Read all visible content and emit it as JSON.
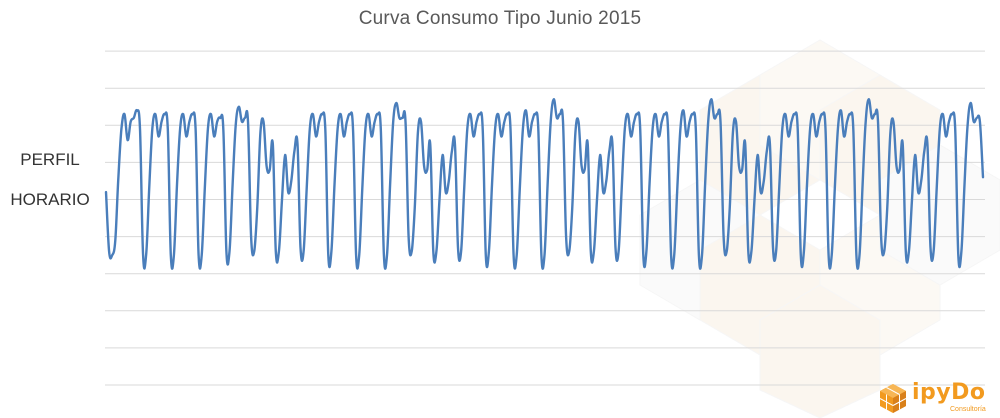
{
  "chart_data": {
    "type": "line",
    "title": "Curva Consumo Tipo Junio 2015",
    "ylabel_lines": [
      "PERFIL",
      "HORARIO"
    ],
    "xlabel": "",
    "grid": true,
    "legend": "none",
    "series_color": "#4a7ebb",
    "series": [
      {
        "values": [
          2.2,
          0.6,
          0.5,
          0.9,
          2.6,
          3.9,
          4.3,
          3.6,
          4.1,
          4.2,
          4.4,
          3.9,
          0.5,
          0.5,
          2.3,
          3.9,
          4.3,
          3.7,
          4.1,
          4.3,
          3.9,
          0.5,
          0.5,
          2.4,
          3.9,
          4.3,
          3.7,
          4.1,
          4.3,
          3.9,
          0.5,
          0.5,
          2.3,
          3.9,
          4.3,
          3.7,
          4.1,
          4.2,
          3.9,
          0.6,
          0.6,
          2.4,
          4.0,
          4.5,
          4.1,
          4.2,
          4.1,
          1.0,
          0.6,
          1.8,
          3.8,
          4.1,
          2.9,
          2.8,
          3.5,
          0.6,
          0.6,
          2.0,
          3.2,
          2.2,
          2.5,
          3.3,
          3.5,
          0.7,
          0.6,
          2.3,
          3.9,
          4.3,
          3.7,
          4.1,
          4.3,
          3.9,
          0.5,
          0.6,
          2.4,
          3.9,
          4.3,
          3.7,
          4.1,
          4.3,
          3.9,
          0.5,
          0.5,
          2.3,
          3.9,
          4.3,
          3.7,
          4.1,
          4.3,
          3.9,
          0.5,
          0.5,
          2.4,
          4.1,
          4.6,
          4.2,
          4.2,
          4.1,
          1.0,
          0.6,
          1.8,
          3.8,
          4.1,
          2.9,
          2.8,
          3.5,
          0.6,
          0.6,
          2.0,
          3.2,
          2.2,
          2.5,
          3.3,
          3.5,
          0.7,
          0.6,
          2.3,
          3.9,
          4.3,
          3.7,
          4.1,
          4.3,
          3.9,
          0.5,
          0.6,
          2.4,
          3.9,
          4.3,
          3.7,
          4.1,
          4.3,
          3.9,
          0.5,
          0.5,
          2.3,
          3.9,
          4.4,
          3.7,
          4.1,
          4.3,
          3.9,
          0.5,
          0.5,
          2.4,
          4.1,
          4.7,
          4.2,
          4.3,
          4.1,
          1.0,
          0.6,
          1.8,
          3.8,
          4.1,
          2.9,
          2.8,
          3.5,
          0.6,
          0.6,
          2.0,
          3.2,
          2.2,
          2.5,
          3.3,
          3.5,
          0.7,
          0.6,
          2.3,
          3.9,
          4.3,
          3.7,
          4.1,
          4.3,
          3.9,
          0.5,
          0.6,
          2.4,
          3.9,
          4.3,
          3.7,
          4.1,
          4.3,
          3.9,
          0.5,
          0.5,
          2.3,
          3.9,
          4.4,
          3.7,
          4.1,
          4.3,
          3.9,
          0.5,
          0.5,
          2.4,
          4.1,
          4.7,
          4.2,
          4.3,
          4.1,
          1.0,
          0.6,
          1.8,
          3.8,
          4.1,
          2.9,
          2.8,
          3.5,
          0.6,
          0.6,
          2.0,
          3.2,
          2.2,
          2.5,
          3.3,
          3.5,
          0.7,
          0.6,
          2.3,
          3.9,
          4.3,
          3.7,
          4.1,
          4.3,
          3.9,
          0.5,
          0.6,
          2.4,
          3.9,
          4.3,
          3.7,
          4.1,
          4.3,
          3.9,
          0.5,
          0.5,
          2.3,
          3.9,
          4.4,
          3.7,
          4.1,
          4.3,
          3.9,
          0.5,
          0.5,
          2.4,
          4.1,
          4.7,
          4.2,
          4.3,
          4.1,
          1.0,
          0.6,
          1.8,
          3.8,
          4.1,
          2.9,
          2.8,
          3.5,
          0.6,
          0.6,
          2.0,
          3.2,
          2.2,
          2.5,
          3.3,
          3.5,
          0.7,
          0.6,
          2.3,
          3.9,
          4.3,
          3.7,
          4.1,
          4.3,
          3.9,
          0.5,
          0.6,
          2.4,
          4.0,
          4.6,
          4.1,
          4.2,
          4.1,
          2.6
        ]
      }
    ],
    "ylim": [
      -3,
      7
    ]
  },
  "logo": {
    "name": "ipyDo",
    "tagline": "Consultoría",
    "accent": "#f29a1f"
  }
}
